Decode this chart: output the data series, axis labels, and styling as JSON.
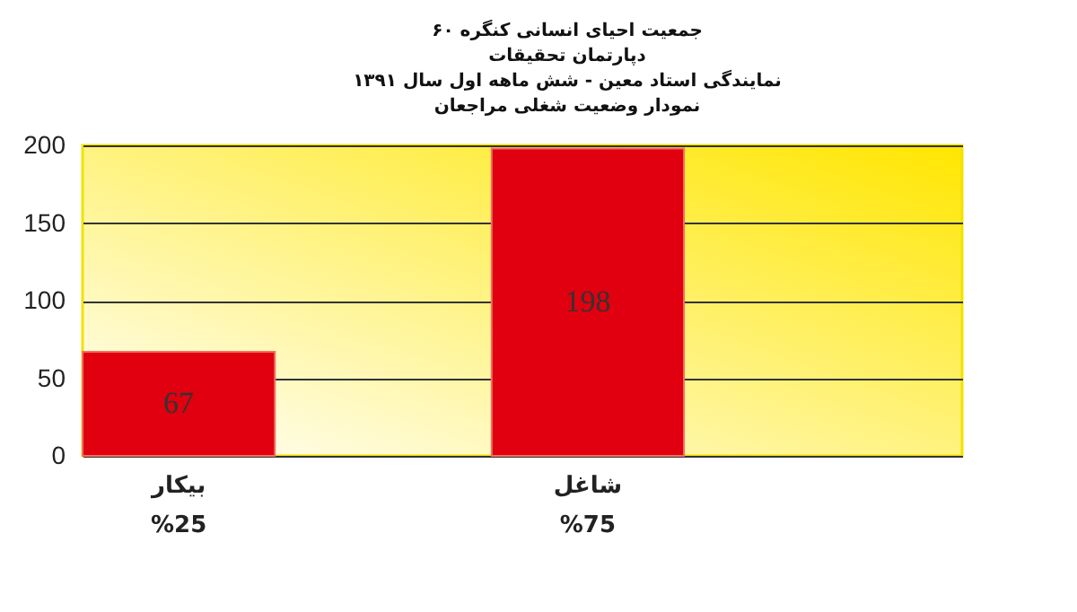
{
  "chart_data": {
    "type": "bar",
    "title": [
      "جمعیت احیای انسانی کنگره ۶۰",
      "دپارتمان تحقیقات",
      "نمایندگی استاد معین  - شش ماهه اول سال ۱۳۹۱",
      "نمودار وضعیت شغلی مراجعان"
    ],
    "categories": [
      "بیکار\n%25",
      "شاغل\n%75"
    ],
    "values": [
      67,
      198
    ],
    "color": "#e0000f",
    "ylim": [
      0,
      200
    ],
    "yticks": [
      0,
      50,
      100,
      150,
      200
    ],
    "grid": "y",
    "data_labels": true
  }
}
